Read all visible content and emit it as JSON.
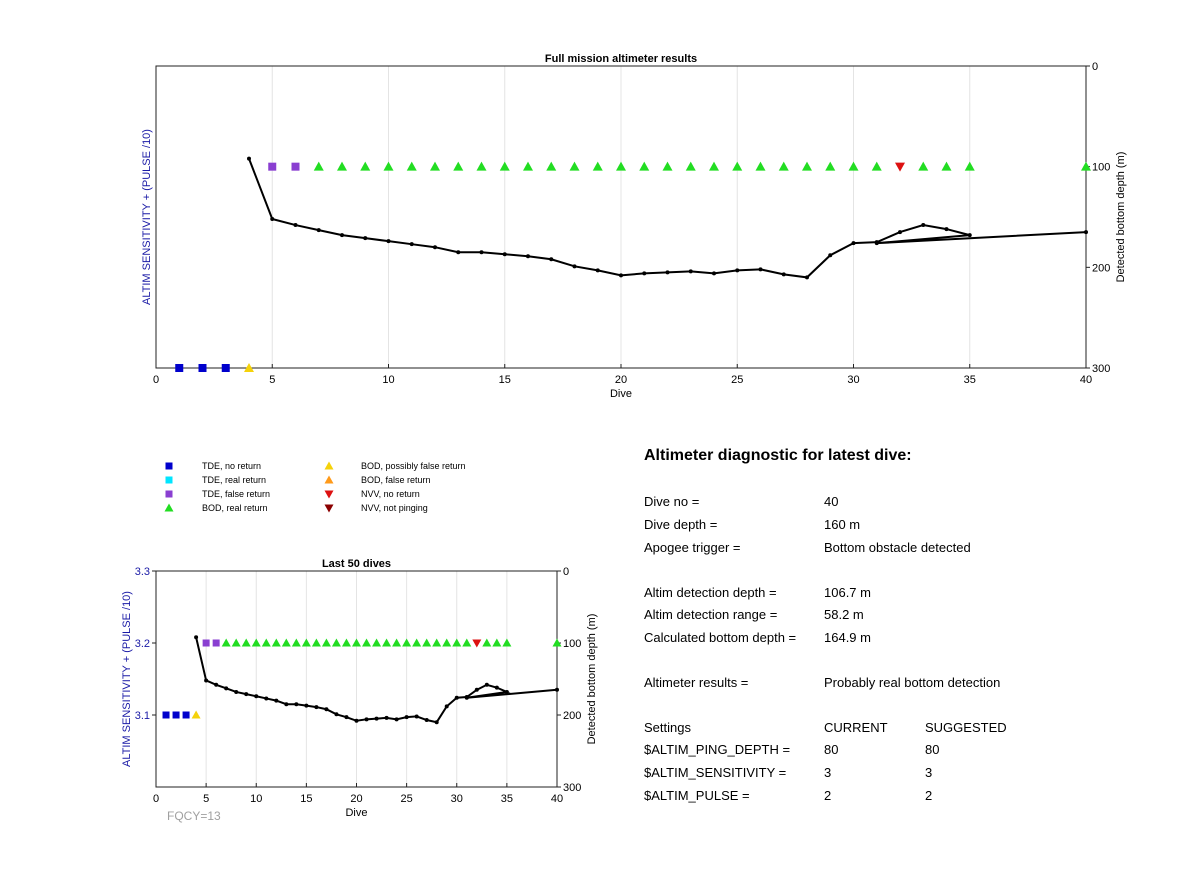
{
  "chart_data": [
    {
      "type": "scatter",
      "title": "Full mission altimeter results",
      "xlabel": "Dive",
      "ylabel_left": "ALTIM SENSITIVITY + (PULSE /10)",
      "ylabel_right": "Detected bottom depth (m)",
      "xlim": [
        0,
        40
      ],
      "xticks": [
        0,
        5,
        10,
        15,
        20,
        25,
        30,
        35,
        40
      ],
      "ylim_right": [
        0,
        300
      ],
      "yticks_right": [
        0,
        100,
        200,
        300
      ],
      "grid": "vertical",
      "markers": [
        {
          "dive": 1,
          "kind": "tde_no_return",
          "depth": 300
        },
        {
          "dive": 2,
          "kind": "tde_no_return",
          "depth": 300
        },
        {
          "dive": 3,
          "kind": "tde_no_return",
          "depth": 300
        },
        {
          "dive": 4,
          "kind": "bod_possibly_false",
          "depth": 300
        },
        {
          "dive": 5,
          "kind": "tde_false_return",
          "depth": 100
        },
        {
          "dive": 6,
          "kind": "tde_false_return",
          "depth": 100
        },
        {
          "dive": 7,
          "kind": "bod_real_return",
          "depth": 100
        },
        {
          "dive": 8,
          "kind": "bod_real_return",
          "depth": 100
        },
        {
          "dive": 9,
          "kind": "bod_real_return",
          "depth": 100
        },
        {
          "dive": 10,
          "kind": "bod_real_return",
          "depth": 100
        },
        {
          "dive": 11,
          "kind": "bod_real_return",
          "depth": 100
        },
        {
          "dive": 12,
          "kind": "bod_real_return",
          "depth": 100
        },
        {
          "dive": 13,
          "kind": "bod_real_return",
          "depth": 100
        },
        {
          "dive": 14,
          "kind": "bod_real_return",
          "depth": 100
        },
        {
          "dive": 15,
          "kind": "bod_real_return",
          "depth": 100
        },
        {
          "dive": 16,
          "kind": "bod_real_return",
          "depth": 100
        },
        {
          "dive": 17,
          "kind": "bod_real_return",
          "depth": 100
        },
        {
          "dive": 18,
          "kind": "bod_real_return",
          "depth": 100
        },
        {
          "dive": 19,
          "kind": "bod_real_return",
          "depth": 100
        },
        {
          "dive": 20,
          "kind": "bod_real_return",
          "depth": 100
        },
        {
          "dive": 21,
          "kind": "bod_real_return",
          "depth": 100
        },
        {
          "dive": 22,
          "kind": "bod_real_return",
          "depth": 100
        },
        {
          "dive": 23,
          "kind": "bod_real_return",
          "depth": 100
        },
        {
          "dive": 24,
          "kind": "bod_real_return",
          "depth": 100
        },
        {
          "dive": 25,
          "kind": "bod_real_return",
          "depth": 100
        },
        {
          "dive": 26,
          "kind": "bod_real_return",
          "depth": 100
        },
        {
          "dive": 27,
          "kind": "bod_real_return",
          "depth": 100
        },
        {
          "dive": 28,
          "kind": "bod_real_return",
          "depth": 100
        },
        {
          "dive": 29,
          "kind": "bod_real_return",
          "depth": 100
        },
        {
          "dive": 30,
          "kind": "bod_real_return",
          "depth": 100
        },
        {
          "dive": 31,
          "kind": "bod_real_return",
          "depth": 100
        },
        {
          "dive": 32,
          "kind": "nvv_no_return",
          "depth": 100
        },
        {
          "dive": 33,
          "kind": "bod_real_return",
          "depth": 100
        },
        {
          "dive": 34,
          "kind": "bod_real_return",
          "depth": 100
        },
        {
          "dive": 35,
          "kind": "bod_real_return",
          "depth": 100
        },
        {
          "dive": 40,
          "kind": "bod_real_return",
          "depth": 100
        }
      ],
      "depth_line": [
        [
          4,
          92
        ],
        [
          5,
          152
        ],
        [
          6,
          158
        ],
        [
          7,
          163
        ],
        [
          8,
          168
        ],
        [
          9,
          171
        ],
        [
          10,
          174
        ],
        [
          11,
          177
        ],
        [
          12,
          180
        ],
        [
          13,
          185
        ],
        [
          14,
          185
        ],
        [
          15,
          187
        ],
        [
          16,
          189
        ],
        [
          17,
          192
        ],
        [
          18,
          199
        ],
        [
          19,
          203
        ],
        [
          20,
          208
        ],
        [
          21,
          206
        ],
        [
          22,
          205
        ],
        [
          23,
          204
        ],
        [
          24,
          206
        ],
        [
          25,
          203
        ],
        [
          26,
          202
        ],
        [
          27,
          207
        ],
        [
          28,
          210
        ],
        [
          29,
          188
        ],
        [
          30,
          176
        ],
        [
          31,
          175
        ],
        [
          32,
          165
        ],
        [
          33,
          158
        ],
        [
          34,
          162
        ],
        [
          35,
          168
        ],
        [
          31,
          176
        ],
        [
          40,
          165
        ]
      ]
    },
    {
      "type": "scatter",
      "title": "Last 50 dives",
      "xlabel": "Dive",
      "ylabel_left": "ALTIM SENSITIVITY + (PULSE /10)",
      "ylabel_right": "Detected bottom depth (m)",
      "xlim": [
        0,
        40
      ],
      "xticks": [
        0,
        5,
        10,
        15,
        20,
        25,
        30,
        35,
        40
      ],
      "ylim_left": [
        3.0,
        3.3
      ],
      "yticks_left": [
        3.1,
        3.2,
        3.3
      ],
      "ylim_right": [
        0,
        300
      ],
      "yticks_right": [
        0,
        100,
        200,
        300
      ],
      "grid": "vertical",
      "markers": [
        {
          "dive": 1,
          "kind": "tde_no_return",
          "depth": 200
        },
        {
          "dive": 2,
          "kind": "tde_no_return",
          "depth": 200
        },
        {
          "dive": 3,
          "kind": "tde_no_return",
          "depth": 200
        },
        {
          "dive": 4,
          "kind": "bod_possibly_false",
          "depth": 200
        },
        {
          "dive": 5,
          "kind": "tde_false_return",
          "depth": 100
        },
        {
          "dive": 6,
          "kind": "tde_false_return",
          "depth": 100
        },
        {
          "dive": 7,
          "kind": "bod_real_return",
          "depth": 100
        },
        {
          "dive": 8,
          "kind": "bod_real_return",
          "depth": 100
        },
        {
          "dive": 9,
          "kind": "bod_real_return",
          "depth": 100
        },
        {
          "dive": 10,
          "kind": "bod_real_return",
          "depth": 100
        },
        {
          "dive": 11,
          "kind": "bod_real_return",
          "depth": 100
        },
        {
          "dive": 12,
          "kind": "bod_real_return",
          "depth": 100
        },
        {
          "dive": 13,
          "kind": "bod_real_return",
          "depth": 100
        },
        {
          "dive": 14,
          "kind": "bod_real_return",
          "depth": 100
        },
        {
          "dive": 15,
          "kind": "bod_real_return",
          "depth": 100
        },
        {
          "dive": 16,
          "kind": "bod_real_return",
          "depth": 100
        },
        {
          "dive": 17,
          "kind": "bod_real_return",
          "depth": 100
        },
        {
          "dive": 18,
          "kind": "bod_real_return",
          "depth": 100
        },
        {
          "dive": 19,
          "kind": "bod_real_return",
          "depth": 100
        },
        {
          "dive": 20,
          "kind": "bod_real_return",
          "depth": 100
        },
        {
          "dive": 21,
          "kind": "bod_real_return",
          "depth": 100
        },
        {
          "dive": 22,
          "kind": "bod_real_return",
          "depth": 100
        },
        {
          "dive": 23,
          "kind": "bod_real_return",
          "depth": 100
        },
        {
          "dive": 24,
          "kind": "bod_real_return",
          "depth": 100
        },
        {
          "dive": 25,
          "kind": "bod_real_return",
          "depth": 100
        },
        {
          "dive": 26,
          "kind": "bod_real_return",
          "depth": 100
        },
        {
          "dive": 27,
          "kind": "bod_real_return",
          "depth": 100
        },
        {
          "dive": 28,
          "kind": "bod_real_return",
          "depth": 100
        },
        {
          "dive": 29,
          "kind": "bod_real_return",
          "depth": 100
        },
        {
          "dive": 30,
          "kind": "bod_real_return",
          "depth": 100
        },
        {
          "dive": 31,
          "kind": "bod_real_return",
          "depth": 100
        },
        {
          "dive": 32,
          "kind": "nvv_no_return",
          "depth": 100
        },
        {
          "dive": 33,
          "kind": "bod_real_return",
          "depth": 100
        },
        {
          "dive": 34,
          "kind": "bod_real_return",
          "depth": 100
        },
        {
          "dive": 35,
          "kind": "bod_real_return",
          "depth": 100
        },
        {
          "dive": 40,
          "kind": "bod_real_return",
          "depth": 100
        }
      ],
      "depth_line": [
        [
          4,
          92
        ],
        [
          5,
          152
        ],
        [
          6,
          158
        ],
        [
          7,
          163
        ],
        [
          8,
          168
        ],
        [
          9,
          171
        ],
        [
          10,
          174
        ],
        [
          11,
          177
        ],
        [
          12,
          180
        ],
        [
          13,
          185
        ],
        [
          14,
          185
        ],
        [
          15,
          187
        ],
        [
          16,
          189
        ],
        [
          17,
          192
        ],
        [
          18,
          199
        ],
        [
          19,
          203
        ],
        [
          20,
          208
        ],
        [
          21,
          206
        ],
        [
          22,
          205
        ],
        [
          23,
          204
        ],
        [
          24,
          206
        ],
        [
          25,
          203
        ],
        [
          26,
          202
        ],
        [
          27,
          207
        ],
        [
          28,
          210
        ],
        [
          29,
          188
        ],
        [
          30,
          176
        ],
        [
          31,
          175
        ],
        [
          32,
          165
        ],
        [
          33,
          158
        ],
        [
          34,
          162
        ],
        [
          35,
          168
        ],
        [
          31,
          176
        ],
        [
          40,
          165
        ]
      ]
    }
  ],
  "marker_styles": {
    "tde_no_return": {
      "shape": "square",
      "color": "#0000cc"
    },
    "tde_real_return": {
      "shape": "square",
      "color": "#00e5ff"
    },
    "tde_false_return": {
      "shape": "square",
      "color": "#8a3fd1"
    },
    "bod_real_return": {
      "shape": "triangle-up",
      "color": "#22dd22"
    },
    "bod_possibly_false": {
      "shape": "triangle-up",
      "color": "#f5d20a"
    },
    "bod_false_return": {
      "shape": "triangle-up",
      "color": "#ff9a1a"
    },
    "nvv_no_return": {
      "shape": "triangle-down",
      "color": "#dd1111"
    },
    "nvv_not_pinging": {
      "shape": "triangle-down",
      "color": "#8b0000"
    }
  },
  "legend": [
    {
      "kind": "tde_no_return",
      "label": "TDE, no return"
    },
    {
      "kind": "tde_real_return",
      "label": "TDE, real return"
    },
    {
      "kind": "tde_false_return",
      "label": "TDE, false return"
    },
    {
      "kind": "bod_real_return",
      "label": "BOD, real return"
    },
    {
      "kind": "bod_possibly_false",
      "label": "BOD, possibly false return"
    },
    {
      "kind": "bod_false_return",
      "label": "BOD, false return"
    },
    {
      "kind": "nvv_no_return",
      "label": "NVV, no return"
    },
    {
      "kind": "nvv_not_pinging",
      "label": "NVV, not pinging"
    }
  ],
  "fqcy_label": "FQCY=13",
  "colors": {
    "left_axis_label": "#1a1aa6",
    "fqcy": "#a0a0a0",
    "grid": "#e4e4e4"
  },
  "diagnostic": {
    "title": "Altimeter diagnostic for latest dive:",
    "rows": [
      {
        "label": "Dive no =",
        "value": "40"
      },
      {
        "label": "Dive depth =",
        "value": "160 m"
      },
      {
        "label": "Apogee trigger =",
        "value": "Bottom obstacle detected"
      },
      {
        "label": "Altim detection depth =",
        "value": "106.7 m"
      },
      {
        "label": "Altim detection range =",
        "value": "58.2 m"
      },
      {
        "label": "Calculated bottom depth =",
        "value": "164.9 m"
      },
      {
        "label": "Altimeter results =",
        "value": "Probably real bottom detection"
      }
    ],
    "settings_header": {
      "label": "Settings",
      "current": "CURRENT",
      "suggested": "SUGGESTED"
    },
    "settings": [
      {
        "name": "$ALTIM_PING_DEPTH =",
        "current": "80",
        "suggested": "80"
      },
      {
        "name": "$ALTIM_SENSITIVITY =",
        "current": "3",
        "suggested": "3"
      },
      {
        "name": "$ALTIM_PULSE =",
        "current": "2",
        "suggested": "2"
      }
    ]
  }
}
